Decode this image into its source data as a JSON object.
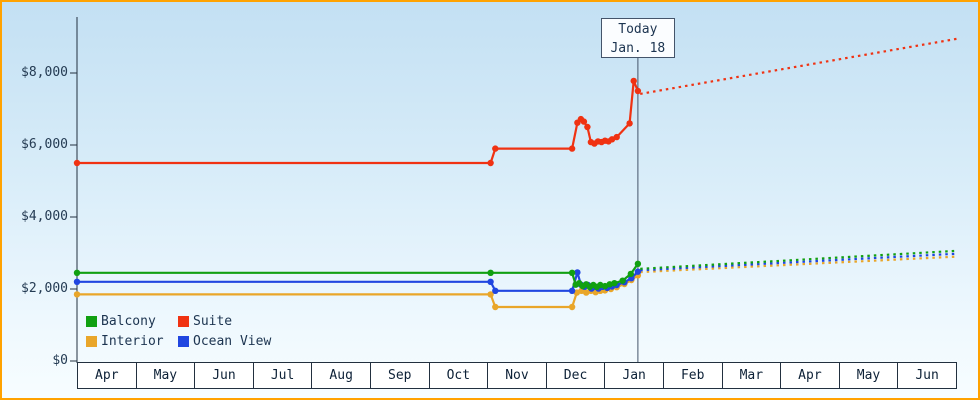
{
  "chart_data": {
    "type": "line",
    "title": "",
    "y_axis": {
      "ticks": [
        0,
        2000,
        4000,
        6000,
        8000
      ],
      "tick_labels": [
        "$0",
        "$2,000",
        "$4,000",
        "$6,000",
        "$8,000"
      ],
      "range": [
        0,
        9556
      ]
    },
    "x_axis": {
      "month_labels": [
        "Apr",
        "May",
        "Jun",
        "Jul",
        "Aug",
        "Sep",
        "Oct",
        "Nov",
        "Dec",
        "Jan",
        "Feb",
        "Mar",
        "Apr",
        "May",
        "Jun"
      ],
      "range_months": 15
    },
    "today": {
      "line1": "Today",
      "line2": "Jan. 18",
      "x_months": 9.56
    },
    "legend": {
      "items": [
        {
          "label": "Balcony",
          "color": "#11a011"
        },
        {
          "label": "Suite",
          "color": "#f03212"
        },
        {
          "label": "Interior",
          "color": "#e9a62a"
        },
        {
          "label": "Ocean View",
          "color": "#2046e0"
        }
      ]
    },
    "series": [
      {
        "name": "Interior",
        "color": "#e9a62a",
        "solid": [
          [
            0,
            1850
          ],
          [
            7.05,
            1850
          ],
          [
            7.13,
            1500
          ],
          [
            8.44,
            1500
          ],
          [
            8.52,
            1900
          ],
          [
            8.6,
            1950
          ],
          [
            8.68,
            1900
          ],
          [
            8.76,
            1950
          ],
          [
            8.84,
            1910
          ],
          [
            8.92,
            1950
          ],
          [
            9.0,
            1960
          ],
          [
            9.1,
            2000
          ],
          [
            9.2,
            2050
          ],
          [
            9.33,
            2140
          ],
          [
            9.45,
            2250
          ],
          [
            9.56,
            2380
          ]
        ],
        "dotted": [
          [
            9.6,
            2470
          ],
          [
            15.0,
            2900
          ]
        ]
      },
      {
        "name": "Ocean View",
        "color": "#2046e0",
        "solid": [
          [
            0,
            2200
          ],
          [
            7.05,
            2200
          ],
          [
            7.13,
            1950
          ],
          [
            8.44,
            1950
          ],
          [
            8.53,
            2460
          ],
          [
            8.59,
            2120
          ],
          [
            8.65,
            2060
          ],
          [
            8.71,
            2110
          ],
          [
            8.77,
            2010
          ],
          [
            8.83,
            2060
          ],
          [
            8.89,
            2010
          ],
          [
            8.96,
            2060
          ],
          [
            9.04,
            2030
          ],
          [
            9.12,
            2070
          ],
          [
            9.2,
            2110
          ],
          [
            9.33,
            2190
          ],
          [
            9.45,
            2300
          ],
          [
            9.56,
            2480
          ]
        ],
        "dotted": [
          [
            9.6,
            2520
          ],
          [
            15.0,
            2980
          ]
        ]
      },
      {
        "name": "Balcony",
        "color": "#11a011",
        "solid": [
          [
            0,
            2450
          ],
          [
            7.05,
            2450
          ],
          [
            8.44,
            2450
          ],
          [
            8.5,
            2120
          ],
          [
            8.56,
            2160
          ],
          [
            8.62,
            2080
          ],
          [
            8.68,
            2130
          ],
          [
            8.74,
            2060
          ],
          [
            8.8,
            2110
          ],
          [
            8.86,
            2060
          ],
          [
            8.92,
            2110
          ],
          [
            9.0,
            2080
          ],
          [
            9.08,
            2130
          ],
          [
            9.16,
            2160
          ],
          [
            9.3,
            2230
          ],
          [
            9.44,
            2420
          ],
          [
            9.56,
            2700
          ]
        ],
        "dotted": [
          [
            9.6,
            2560
          ],
          [
            15.0,
            3060
          ]
        ]
      },
      {
        "name": "Suite",
        "color": "#f03212",
        "solid": [
          [
            0,
            5500
          ],
          [
            7.05,
            5500
          ],
          [
            7.13,
            5900
          ],
          [
            8.44,
            5900
          ],
          [
            8.53,
            6620
          ],
          [
            8.59,
            6720
          ],
          [
            8.64,
            6650
          ],
          [
            8.7,
            6500
          ],
          [
            8.76,
            6080
          ],
          [
            8.82,
            6040
          ],
          [
            8.88,
            6100
          ],
          [
            8.94,
            6080
          ],
          [
            9.0,
            6120
          ],
          [
            9.06,
            6100
          ],
          [
            9.12,
            6160
          ],
          [
            9.2,
            6220
          ],
          [
            9.42,
            6600
          ],
          [
            9.49,
            7780
          ],
          [
            9.56,
            7500
          ]
        ],
        "dotted": [
          [
            9.6,
            7420
          ],
          [
            15.0,
            8950
          ]
        ]
      }
    ],
    "colors": {
      "border": "#ffa200",
      "axis": "#22303f",
      "today_line": "#44546a"
    }
  }
}
